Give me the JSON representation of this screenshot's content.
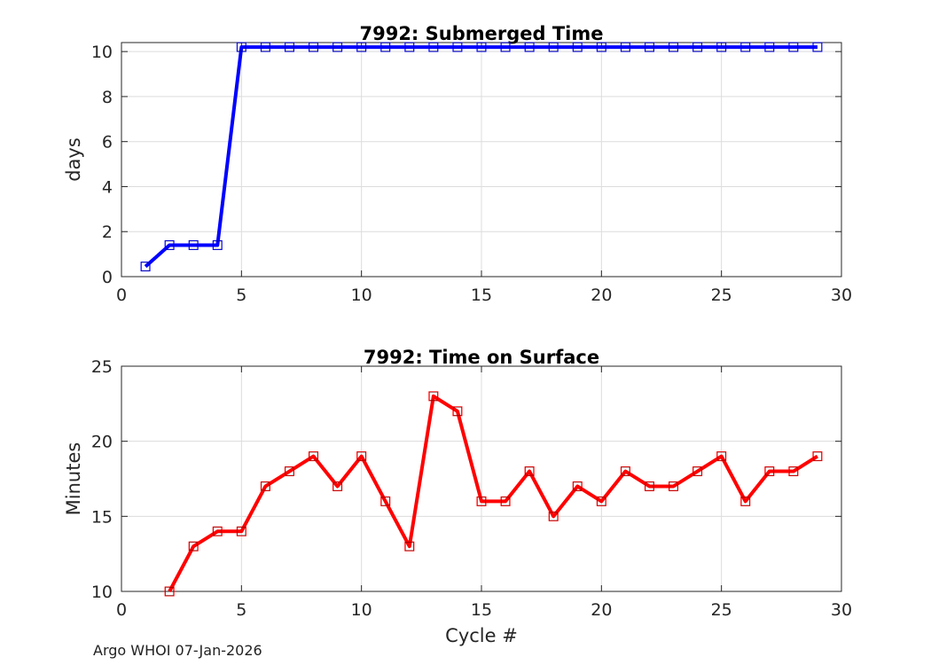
{
  "chart_data": [
    {
      "type": "line",
      "title": "7992: Submerged Time",
      "xlabel": "",
      "ylabel": "days",
      "xlim": [
        0,
        30
      ],
      "ylim": [
        0,
        10.4
      ],
      "xticks": [
        0,
        5,
        10,
        15,
        20,
        25,
        30
      ],
      "yticks": [
        0,
        2,
        4,
        6,
        8,
        10
      ],
      "grid": true,
      "color": "#0000ff",
      "marker": "square",
      "series": [
        {
          "name": "Submerged Time",
          "x": [
            1,
            2,
            3,
            4,
            5,
            6,
            7,
            8,
            9,
            10,
            11,
            12,
            13,
            14,
            15,
            16,
            17,
            18,
            19,
            20,
            21,
            22,
            23,
            24,
            25,
            26,
            27,
            28,
            29
          ],
          "values": [
            0.45,
            1.4,
            1.4,
            1.4,
            10.2,
            10.2,
            10.2,
            10.2,
            10.2,
            10.2,
            10.2,
            10.2,
            10.2,
            10.2,
            10.2,
            10.2,
            10.2,
            10.2,
            10.2,
            10.2,
            10.2,
            10.2,
            10.2,
            10.2,
            10.2,
            10.2,
            10.2,
            10.2,
            10.2
          ]
        }
      ]
    },
    {
      "type": "line",
      "title": "7992: Time on Surface",
      "xlabel": "Cycle #",
      "ylabel": "Minutes",
      "xlim": [
        0,
        30
      ],
      "ylim": [
        10,
        25
      ],
      "xticks": [
        0,
        5,
        10,
        15,
        20,
        25,
        30
      ],
      "yticks": [
        10,
        15,
        20,
        25
      ],
      "grid": true,
      "color": "#ff0000",
      "marker": "square",
      "series": [
        {
          "name": "Time on Surface",
          "x": [
            2,
            3,
            4,
            5,
            6,
            7,
            8,
            9,
            10,
            11,
            12,
            13,
            14,
            15,
            16,
            17,
            18,
            19,
            20,
            21,
            22,
            23,
            24,
            25,
            26,
            27,
            28,
            29
          ],
          "values": [
            10,
            13,
            14,
            14,
            17,
            18,
            19,
            17,
            19,
            16,
            13,
            23,
            22,
            16,
            16,
            18,
            15,
            17,
            16,
            18,
            17,
            17,
            18,
            19,
            16,
            18,
            18,
            19
          ]
        }
      ]
    }
  ],
  "footer": "Argo WHOI 07-Jan-2026"
}
